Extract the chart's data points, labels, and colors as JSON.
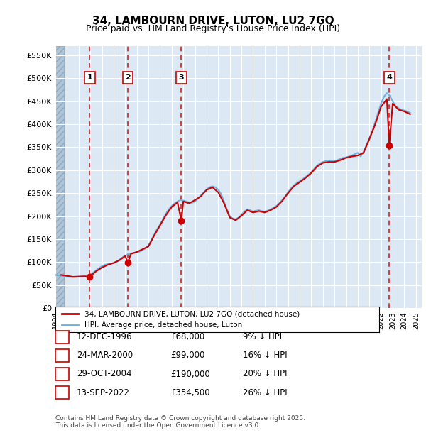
{
  "title": "34, LAMBOURN DRIVE, LUTON, LU2 7GQ",
  "subtitle": "Price paid vs. HM Land Registry's House Price Index (HPI)",
  "ylabel_ticks": [
    "£0",
    "£50K",
    "£100K",
    "£150K",
    "£200K",
    "£250K",
    "£300K",
    "£350K",
    "£400K",
    "£450K",
    "£500K",
    "£550K"
  ],
  "ytick_values": [
    0,
    50000,
    100000,
    150000,
    200000,
    250000,
    300000,
    350000,
    400000,
    450000,
    500000,
    550000
  ],
  "xlim_start": 1994.0,
  "xlim_end": 2025.5,
  "ylim_min": 0,
  "ylim_max": 570000,
  "bg_color": "#dce9f5",
  "hatch_color": "#b0c4d8",
  "grid_color": "#ffffff",
  "sale_dates": [
    1996.95,
    2000.23,
    2004.83,
    2022.71
  ],
  "sale_prices": [
    68000,
    99000,
    190000,
    354500
  ],
  "sale_labels": [
    "1",
    "2",
    "3",
    "4"
  ],
  "red_line_color": "#cc0000",
  "blue_line_color": "#6ab0e0",
  "sale_marker_color": "#cc0000",
  "vline_color": "#cc0000",
  "legend_entries": [
    "34, LAMBOURN DRIVE, LUTON, LU2 7GQ (detached house)",
    "HPI: Average price, detached house, Luton"
  ],
  "table_rows": [
    {
      "label": "1",
      "date": "12-DEC-1996",
      "price": "£68,000",
      "hpi": "9% ↓ HPI"
    },
    {
      "label": "2",
      "date": "24-MAR-2000",
      "price": "£99,000",
      "hpi": "16% ↓ HPI"
    },
    {
      "label": "3",
      "date": "29-OCT-2004",
      "price": "£190,000",
      "hpi": "20% ↓ HPI"
    },
    {
      "label": "4",
      "date": "13-SEP-2022",
      "price": "£354,500",
      "hpi": "26% ↓ HPI"
    }
  ],
  "footnote": "Contains HM Land Registry data © Crown copyright and database right 2025.\nThis data is licensed under the Open Government Licence v3.0.",
  "hpi_data": {
    "years": [
      1994.0,
      1994.25,
      1994.5,
      1994.75,
      1995.0,
      1995.25,
      1995.5,
      1995.75,
      1996.0,
      1996.25,
      1996.5,
      1996.75,
      1997.0,
      1997.25,
      1997.5,
      1997.75,
      1998.0,
      1998.25,
      1998.5,
      1998.75,
      1999.0,
      1999.25,
      1999.5,
      1999.75,
      2000.0,
      2000.25,
      2000.5,
      2000.75,
      2001.0,
      2001.25,
      2001.5,
      2001.75,
      2002.0,
      2002.25,
      2002.5,
      2002.75,
      2003.0,
      2003.25,
      2003.5,
      2003.75,
      2004.0,
      2004.25,
      2004.5,
      2004.75,
      2005.0,
      2005.25,
      2005.5,
      2005.75,
      2006.0,
      2006.25,
      2006.5,
      2006.75,
      2007.0,
      2007.25,
      2007.5,
      2007.75,
      2008.0,
      2008.25,
      2008.5,
      2008.75,
      2009.0,
      2009.25,
      2009.5,
      2009.75,
      2010.0,
      2010.25,
      2010.5,
      2010.75,
      2011.0,
      2011.25,
      2011.5,
      2011.75,
      2012.0,
      2012.25,
      2012.5,
      2012.75,
      2013.0,
      2013.25,
      2013.5,
      2013.75,
      2014.0,
      2014.25,
      2014.5,
      2014.75,
      2015.0,
      2015.25,
      2015.5,
      2015.75,
      2016.0,
      2016.25,
      2016.5,
      2016.75,
      2017.0,
      2017.25,
      2017.5,
      2017.75,
      2018.0,
      2018.25,
      2018.5,
      2018.75,
      2019.0,
      2019.25,
      2019.5,
      2019.75,
      2020.0,
      2020.25,
      2020.5,
      2020.75,
      2021.0,
      2021.25,
      2021.5,
      2021.75,
      2022.0,
      2022.25,
      2022.5,
      2022.75,
      2023.0,
      2023.25,
      2023.5,
      2023.75,
      2024.0,
      2024.25,
      2024.5
    ],
    "values": [
      72000,
      71000,
      70000,
      69500,
      68000,
      67500,
      67000,
      67500,
      68000,
      68500,
      69000,
      70000,
      73000,
      77000,
      82000,
      87000,
      91000,
      94000,
      96000,
      97000,
      98000,
      101000,
      105000,
      110000,
      114000,
      117000,
      119000,
      120000,
      121000,
      123000,
      126000,
      130000,
      136000,
      148000,
      160000,
      172000,
      182000,
      193000,
      205000,
      215000,
      222000,
      228000,
      232000,
      235000,
      234000,
      232000,
      230000,
      229000,
      232000,
      238000,
      245000,
      252000,
      258000,
      263000,
      265000,
      263000,
      258000,
      248000,
      232000,
      215000,
      200000,
      195000,
      193000,
      197000,
      203000,
      210000,
      215000,
      213000,
      210000,
      212000,
      213000,
      211000,
      210000,
      212000,
      215000,
      218000,
      222000,
      228000,
      235000,
      243000,
      252000,
      260000,
      267000,
      272000,
      276000,
      280000,
      285000,
      290000,
      296000,
      303000,
      310000,
      315000,
      318000,
      320000,
      321000,
      320000,
      320000,
      322000,
      325000,
      327000,
      328000,
      330000,
      332000,
      335000,
      338000,
      330000,
      340000,
      355000,
      370000,
      385000,
      405000,
      425000,
      445000,
      460000,
      468000,
      462000,
      450000,
      440000,
      435000,
      432000,
      430000,
      428000,
      425000
    ]
  },
  "red_line_data": {
    "years": [
      1994.5,
      1995.0,
      1995.5,
      1996.0,
      1996.5,
      1996.95,
      1997.5,
      1998.0,
      1998.5,
      1999.0,
      1999.5,
      2000.0,
      2000.23,
      2000.5,
      2001.0,
      2001.5,
      2002.0,
      2002.5,
      2003.0,
      2003.5,
      2004.0,
      2004.5,
      2004.83,
      2005.0,
      2005.5,
      2006.0,
      2006.5,
      2007.0,
      2007.5,
      2008.0,
      2008.5,
      2009.0,
      2009.5,
      2010.0,
      2010.5,
      2011.0,
      2011.5,
      2012.0,
      2012.5,
      2013.0,
      2013.5,
      2014.0,
      2014.5,
      2015.0,
      2015.5,
      2016.0,
      2016.5,
      2017.0,
      2017.5,
      2018.0,
      2018.5,
      2019.0,
      2019.5,
      2020.0,
      2020.5,
      2021.0,
      2021.5,
      2022.0,
      2022.5,
      2022.71,
      2023.0,
      2023.5,
      2024.0,
      2024.5
    ],
    "values": [
      72000,
      70000,
      68000,
      68500,
      69000,
      68000,
      80000,
      88000,
      94000,
      98000,
      104000,
      113000,
      99000,
      118000,
      122000,
      128000,
      134000,
      158000,
      180000,
      202000,
      220000,
      230000,
      190000,
      232000,
      228000,
      235000,
      243000,
      257000,
      263000,
      252000,
      228000,
      197000,
      191000,
      201000,
      213000,
      208000,
      211000,
      208000,
      213000,
      220000,
      233000,
      250000,
      265000,
      274000,
      283000,
      294000,
      308000,
      316000,
      318000,
      318000,
      322000,
      327000,
      330000,
      332000,
      338000,
      368000,
      400000,
      438000,
      455000,
      354500,
      445000,
      432000,
      428000,
      422000
    ]
  }
}
